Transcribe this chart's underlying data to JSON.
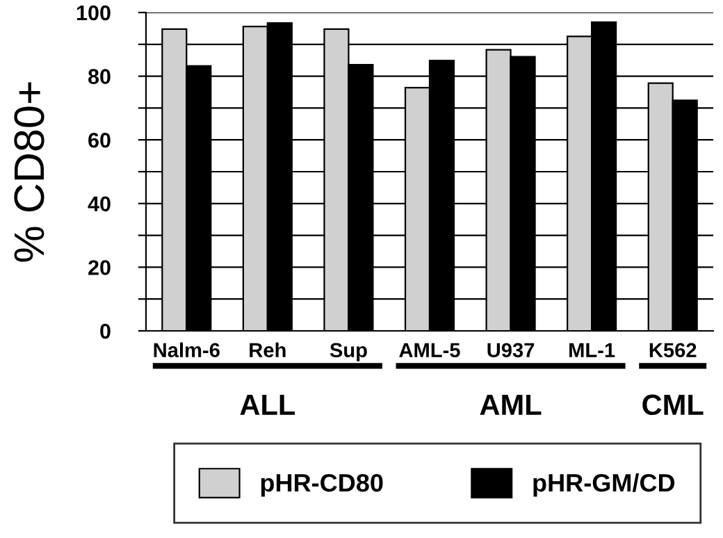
{
  "chart_data": {
    "type": "bar",
    "ylabel": "% CD80+",
    "categories": [
      "Nalm-6",
      "Reh",
      "Sup",
      "AML-5",
      "U937",
      "ML-1",
      "K562"
    ],
    "series": [
      {
        "name": "pHR-CD80",
        "color": "#d0d0d0",
        "values": [
          94.8,
          95.6,
          94.8,
          76.4,
          88.3,
          92.5,
          77.8
        ]
      },
      {
        "name": "pHR-GM/CD",
        "color": "#000000",
        "values": [
          83.2,
          96.7,
          83.6,
          84.9,
          86.1,
          97.0,
          72.4
        ]
      }
    ],
    "ylim": [
      0,
      100
    ],
    "yticks": [
      0,
      {
        "value": 10,
        "label": null
      },
      20,
      {
        "value": 30,
        "label": null
      },
      40,
      {
        "value": 50,
        "label": null
      },
      60,
      {
        "value": 70,
        "label": null
      },
      80,
      {
        "value": 90,
        "label": null
      },
      100
    ],
    "grid": "y",
    "legend": "bottom",
    "annotations": [
      "ALL",
      "AML",
      "CML"
    ]
  }
}
